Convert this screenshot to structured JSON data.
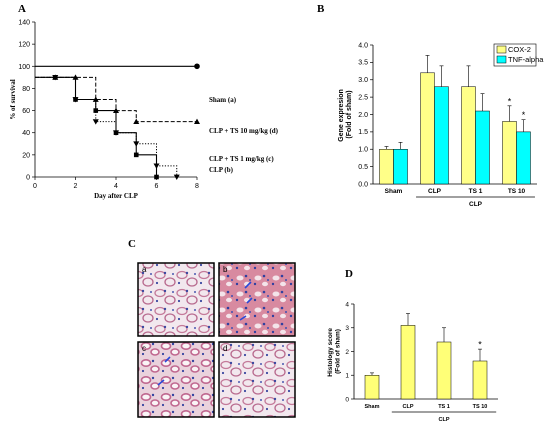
{
  "panels": {
    "a": "A",
    "b": "B",
    "c": "C",
    "d": "D"
  },
  "chart_data": [
    {
      "type": "line",
      "panel": "A",
      "xlabel": "Day after CLP",
      "ylabel": "% of survival",
      "xlim": [
        0,
        8
      ],
      "ylim": [
        0,
        140
      ],
      "xticks": [
        0,
        2,
        4,
        6,
        8
      ],
      "yticks": [
        0,
        20,
        40,
        60,
        80,
        100,
        120,
        140
      ],
      "series": [
        {
          "name": "Sham (a)",
          "style": "solid",
          "marker": "circle",
          "x": [
            0,
            8
          ],
          "y": [
            100,
            100
          ]
        },
        {
          "name": "CLP + TS 10 mg/kg  (d)",
          "style": "dashed",
          "marker": "triangle-up",
          "x": [
            0,
            1,
            2,
            3,
            4,
            5,
            8
          ],
          "y": [
            90,
            90,
            90,
            70,
            60,
            50,
            50
          ]
        },
        {
          "name": "CLP + TS 1 mg/kg (c)",
          "style": "dotted",
          "marker": "triangle-down",
          "x": [
            0,
            1,
            2,
            3,
            4,
            5,
            6,
            7
          ],
          "y": [
            90,
            90,
            70,
            50,
            40,
            30,
            10,
            0
          ]
        },
        {
          "name": "CLP (b)",
          "style": "solid",
          "marker": "square",
          "x": [
            0,
            1,
            2,
            3,
            4,
            5,
            6
          ],
          "y": [
            90,
            90,
            70,
            60,
            40,
            20,
            0
          ]
        }
      ]
    },
    {
      "type": "bar",
      "panel": "B",
      "categories": [
        "Sham",
        "CLP",
        "TS 1",
        "TS 10"
      ],
      "group_label": "CLP",
      "ylabel": "Gene expresion\n(Fold of  sham)",
      "ylim": [
        0,
        4.0
      ],
      "yticks": [
        "0.0",
        "0.5",
        "1.0",
        "1.5",
        "2.0",
        "2.5",
        "3.0",
        "3.5",
        "4.0"
      ],
      "legend": "top-right",
      "series": [
        {
          "name": "COX-2",
          "color": "#ffff88",
          "values": [
            1.0,
            3.2,
            2.8,
            1.8
          ],
          "errors": [
            0.08,
            0.5,
            0.6,
            0.45
          ]
        },
        {
          "name": "TNF-alpha",
          "color": "#00ffff",
          "values": [
            1.0,
            2.8,
            2.1,
            1.5
          ],
          "errors": [
            0.2,
            0.6,
            0.5,
            0.35
          ]
        }
      ],
      "significance": [
        {
          "category": "TS 10",
          "series": 0,
          "mark": "*"
        },
        {
          "category": "TS 10",
          "series": 1,
          "mark": "*"
        }
      ]
    },
    {
      "type": "bar",
      "panel": "D",
      "categories": [
        "Sham",
        "CLP",
        "TS 1",
        "TS 10"
      ],
      "group_label": "CLP",
      "ylabel": "Histology score\n(Fold of sham)",
      "ylim": [
        0,
        4
      ],
      "yticks": [
        "0",
        "1",
        "2",
        "3",
        "4"
      ],
      "series": [
        {
          "color": "#ffff77",
          "values": [
            1.0,
            3.1,
            2.4,
            1.6
          ],
          "errors": [
            0.1,
            0.5,
            0.6,
            0.5
          ]
        }
      ],
      "significance": [
        {
          "category": "TS 10",
          "series": 0,
          "mark": "*"
        }
      ]
    }
  ],
  "micrographs": {
    "labels": [
      "a",
      "b",
      "c",
      "d"
    ]
  }
}
